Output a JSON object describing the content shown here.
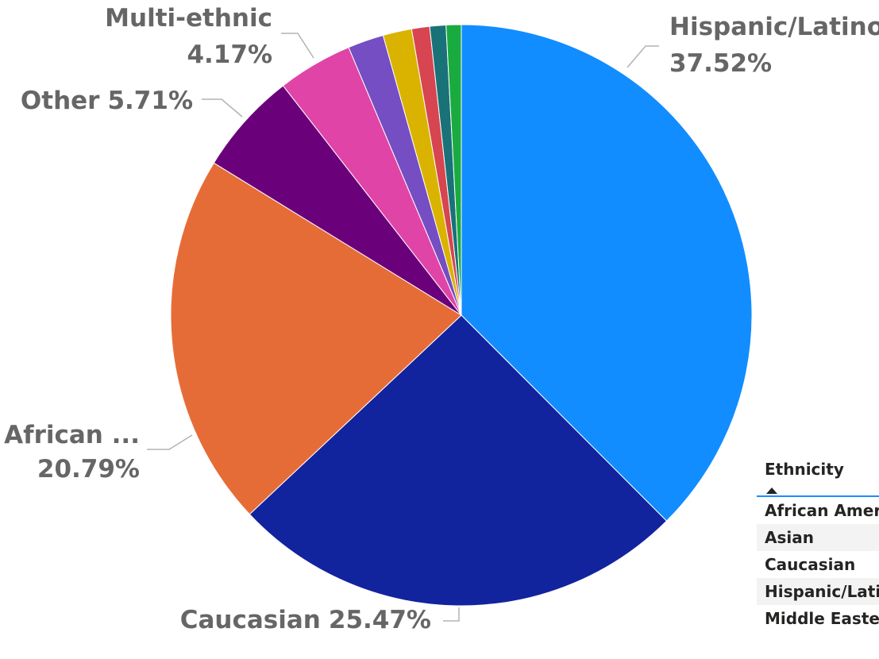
{
  "chart_data": {
    "type": "pie",
    "title": "",
    "start_angle_deg": 0,
    "direction": "clockwise",
    "slices": [
      {
        "label": "Hispanic/Latino",
        "value": 37.52,
        "color": "#118dff",
        "shown_label_name": "Hispanic/Latino",
        "shown_label_pct": "37.52%"
      },
      {
        "label": "Caucasian",
        "value": 25.47,
        "color": "#12239e",
        "shown_label_name": "Caucasian",
        "shown_label_pct": "25.47%"
      },
      {
        "label": "African American",
        "value": 20.79,
        "color": "#e66c37",
        "shown_label_name": "African ...",
        "shown_label_pct": "20.79%"
      },
      {
        "label": "Other",
        "value": 5.71,
        "color": "#6b007b",
        "shown_label_name": "Other",
        "shown_label_pct": "5.71%"
      },
      {
        "label": "Multi-ethnic",
        "value": 4.17,
        "color": "#e044a7",
        "shown_label_name": "Multi-ethnic",
        "shown_label_pct": "4.17%"
      },
      {
        "label": "",
        "value": 2.0,
        "color": "#744ec2",
        "shown_label_name": "",
        "shown_label_pct": ""
      },
      {
        "label": "",
        "value": 1.6,
        "color": "#d9b300",
        "shown_label_name": "",
        "shown_label_pct": ""
      },
      {
        "label": "",
        "value": 1.0,
        "color": "#d64550",
        "shown_label_name": "",
        "shown_label_pct": ""
      },
      {
        "label": "",
        "value": 0.9,
        "color": "#197278",
        "shown_label_name": "",
        "shown_label_pct": ""
      },
      {
        "label": "",
        "value": 0.84,
        "color": "#1aab40",
        "shown_label_name": "",
        "shown_label_pct": ""
      }
    ]
  },
  "table": {
    "header": "Ethnicity",
    "sort_icon": "sort-ascending-icon",
    "accent_color": "#118dff",
    "rows": [
      "African American",
      "Asian",
      "Caucasian",
      "Hispanic/Latino",
      "Middle Eastern"
    ]
  }
}
